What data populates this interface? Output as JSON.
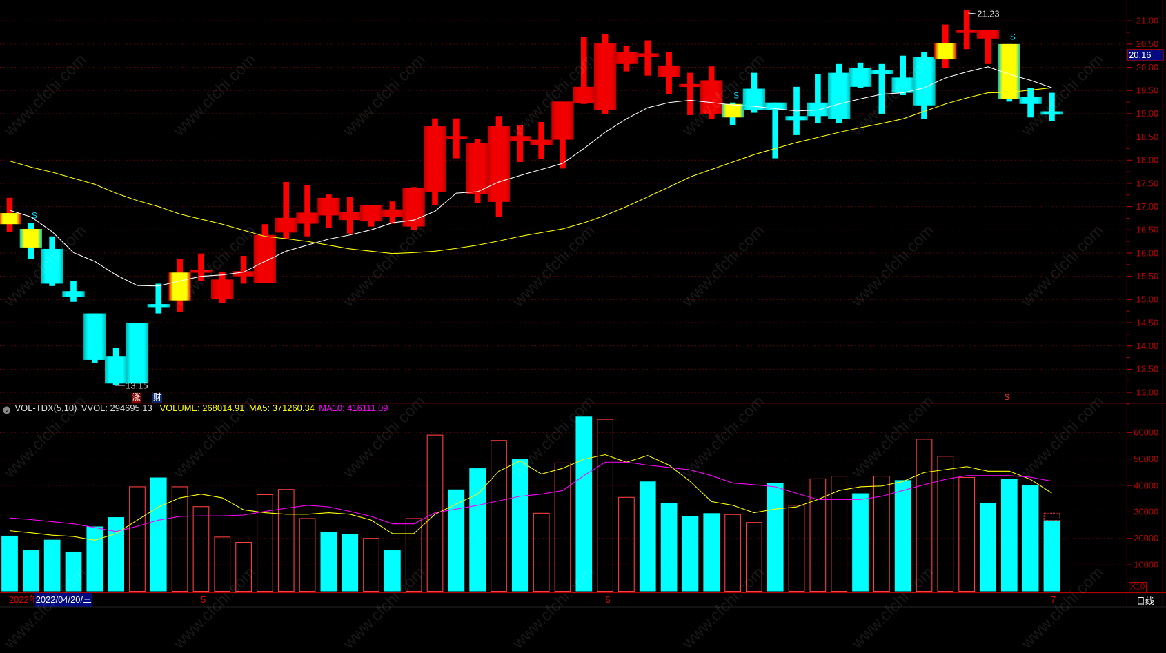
{
  "watermark": "www.cfchi.com",
  "colors": {
    "up": "#ff0000",
    "down": "#00ffff",
    "highlight": "#ffff00",
    "grid": "#8b0000",
    "axis": "#c00000",
    "ma_short": "#ffffff",
    "ma_long": "#ffff00",
    "vol_ma5": "#ffff00",
    "vol_ma10": "#ff00ff",
    "price_tag_bg": "#000a80"
  },
  "price_axis": {
    "ticks": [
      "21.00",
      "20.50",
      "20.00",
      "19.50",
      "19.00",
      "18.50",
      "18.00",
      "17.50",
      "17.00",
      "16.50",
      "16.00",
      "15.50",
      "15.00",
      "14.50",
      "14.00",
      "13.50",
      "13.00"
    ],
    "current_price": "20.16"
  },
  "annotations": {
    "low_label": "13.15",
    "high_label": "21.23",
    "signal_label": "S",
    "badge_rise": "涨",
    "badge_finance": "财",
    "dollar_marker": "$"
  },
  "volume_header": {
    "indicator": "VOL-TDX(5,10)",
    "vvol": "VVOL: 294695.13",
    "volume": "VOLUME: 268014.91",
    "ma5": "MA5: 371260.34",
    "ma10": "MA10: 416111.09"
  },
  "volume_axis": {
    "ticks": [
      "60000",
      "50000",
      "40000",
      "30000",
      "20000",
      "10000"
    ],
    "multiplier": "X10"
  },
  "date_bar": {
    "year": "2022年",
    "selected_date": "2022/04/20/三",
    "months": [
      "5",
      "6",
      "7"
    ],
    "period": "日线"
  },
  "chart_data": {
    "type": "candlestick",
    "candles": [
      {
        "o": 16.86,
        "h": 17.19,
        "l": 16.46,
        "c": 16.62,
        "style": "yellow-up-edge"
      },
      {
        "o": 16.52,
        "h": 16.65,
        "l": 15.88,
        "c": 16.12,
        "style": "yellow-down-edge",
        "signal": true
      },
      {
        "o": 16.09,
        "h": 16.36,
        "l": 15.29,
        "c": 15.34
      },
      {
        "o": 15.18,
        "h": 15.4,
        "l": 14.95,
        "c": 15.05
      },
      {
        "o": 14.7,
        "h": 14.7,
        "l": 13.64,
        "c": 13.7
      },
      {
        "o": 13.77,
        "h": 13.96,
        "l": 13.15,
        "c": 13.19,
        "low_mark": true
      },
      {
        "o": 14.5,
        "h": 14.5,
        "l": 13.19,
        "c": 13.19
      },
      {
        "o": 14.9,
        "h": 15.34,
        "l": 14.7,
        "c": 14.86
      },
      {
        "o": 14.98,
        "h": 15.88,
        "l": 14.73,
        "c": 15.58,
        "style": "yellow-up-edge"
      },
      {
        "o": 15.58,
        "h": 15.99,
        "l": 15.4,
        "c": 15.64
      },
      {
        "o": 15.02,
        "h": 15.59,
        "l": 14.92,
        "c": 15.43
      },
      {
        "o": 15.5,
        "h": 15.94,
        "l": 15.34,
        "c": 15.61
      },
      {
        "o": 15.35,
        "h": 16.62,
        "l": 15.35,
        "c": 16.39
      },
      {
        "o": 16.44,
        "h": 17.53,
        "l": 16.3,
        "c": 16.76
      },
      {
        "o": 16.63,
        "h": 17.46,
        "l": 16.36,
        "c": 16.87
      },
      {
        "o": 16.81,
        "h": 17.26,
        "l": 16.54,
        "c": 17.19
      },
      {
        "o": 16.71,
        "h": 17.21,
        "l": 16.42,
        "c": 16.89
      },
      {
        "o": 16.68,
        "h": 17.03,
        "l": 16.57,
        "c": 17.03
      },
      {
        "o": 16.78,
        "h": 17.11,
        "l": 16.63,
        "c": 16.94
      },
      {
        "o": 16.57,
        "h": 17.42,
        "l": 16.49,
        "c": 17.4
      },
      {
        "o": 17.32,
        "h": 18.9,
        "l": 17.03,
        "c": 18.73
      },
      {
        "o": 18.47,
        "h": 18.9,
        "l": 18.04,
        "c": 18.52
      },
      {
        "o": 17.27,
        "h": 18.46,
        "l": 17.08,
        "c": 18.36
      },
      {
        "o": 17.1,
        "h": 18.95,
        "l": 16.78,
        "c": 18.73
      },
      {
        "o": 18.41,
        "h": 18.76,
        "l": 17.96,
        "c": 18.52
      },
      {
        "o": 18.33,
        "h": 18.82,
        "l": 18.02,
        "c": 18.44
      },
      {
        "o": 18.44,
        "h": 19.26,
        "l": 17.82,
        "c": 19.26
      },
      {
        "o": 19.22,
        "h": 20.66,
        "l": 19.21,
        "c": 19.58
      },
      {
        "o": 19.08,
        "h": 20.71,
        "l": 19.0,
        "c": 20.52
      },
      {
        "o": 20.07,
        "h": 20.47,
        "l": 19.91,
        "c": 20.33
      },
      {
        "o": 20.23,
        "h": 20.58,
        "l": 19.82,
        "c": 20.3
      },
      {
        "o": 19.8,
        "h": 20.33,
        "l": 19.43,
        "c": 20.04
      },
      {
        "o": 19.58,
        "h": 19.88,
        "l": 18.97,
        "c": 19.64
      },
      {
        "o": 19.0,
        "h": 20.02,
        "l": 18.89,
        "c": 19.72
      },
      {
        "o": 19.21,
        "h": 19.24,
        "l": 18.76,
        "c": 18.92,
        "style": "yellow-down-edge",
        "signal": true
      },
      {
        "o": 19.54,
        "h": 19.88,
        "l": 19.02,
        "c": 19.08
      },
      {
        "o": 19.24,
        "h": 19.24,
        "l": 18.04,
        "c": 19.08
      },
      {
        "o": 18.95,
        "h": 19.58,
        "l": 18.54,
        "c": 18.86
      },
      {
        "o": 19.24,
        "h": 19.85,
        "l": 18.79,
        "c": 18.95
      },
      {
        "o": 19.88,
        "h": 20.07,
        "l": 18.79,
        "c": 18.89
      },
      {
        "o": 19.98,
        "h": 20.1,
        "l": 19.56,
        "c": 19.58
      },
      {
        "o": 19.94,
        "h": 20.07,
        "l": 19.0,
        "c": 19.85
      },
      {
        "o": 19.78,
        "h": 20.25,
        "l": 19.4,
        "c": 19.45
      },
      {
        "o": 20.23,
        "h": 20.33,
        "l": 18.89,
        "c": 19.18
      },
      {
        "o": 20.17,
        "h": 20.92,
        "l": 19.99,
        "c": 20.52,
        "style": "yellow-up-edge"
      },
      {
        "o": 20.74,
        "h": 21.23,
        "l": 20.39,
        "c": 20.81,
        "high_mark": true
      },
      {
        "o": 20.62,
        "h": 20.81,
        "l": 20.07,
        "c": 20.81
      },
      {
        "o": 20.5,
        "h": 20.5,
        "l": 19.26,
        "c": 19.32,
        "style": "yellow-down-edge",
        "signal": true
      },
      {
        "o": 19.37,
        "h": 19.56,
        "l": 18.92,
        "c": 19.21
      },
      {
        "o": 19.05,
        "h": 19.45,
        "l": 18.84,
        "c": 18.98
      }
    ],
    "ma_short": [
      16.92,
      16.78,
      16.46,
      16.01,
      15.82,
      15.53,
      15.3,
      15.29,
      15.4,
      15.5,
      15.53,
      15.59,
      15.82,
      16.04,
      16.17,
      16.3,
      16.39,
      16.5,
      16.65,
      16.71,
      16.9,
      17.29,
      17.32,
      17.53,
      17.67,
      17.8,
      17.93,
      18.25,
      18.6,
      18.89,
      19.13,
      19.24,
      19.29,
      19.24,
      19.19,
      19.16,
      19.11,
      19.06,
      19.08,
      19.21,
      19.32,
      19.42,
      19.45,
      19.56,
      19.77,
      19.9,
      20.01,
      19.85,
      19.72,
      19.56
    ],
    "ma_long": [
      17.98,
      17.85,
      17.74,
      17.61,
      17.48,
      17.29,
      17.13,
      17.0,
      16.84,
      16.73,
      16.62,
      16.49,
      16.36,
      16.31,
      16.25,
      16.17,
      16.09,
      16.04,
      15.99,
      16.01,
      16.04,
      16.1,
      16.17,
      16.26,
      16.36,
      16.44,
      16.52,
      16.65,
      16.81,
      17.0,
      17.21,
      17.42,
      17.64,
      17.8,
      17.96,
      18.12,
      18.25,
      18.38,
      18.49,
      18.6,
      18.7,
      18.79,
      18.89,
      19.05,
      19.21,
      19.34,
      19.45,
      19.46,
      19.51,
      19.56
    ],
    "price_range": [
      13.0,
      21.0
    ],
    "volume": [
      21000,
      15500,
      19500,
      15000,
      24500,
      28000,
      39500,
      43000,
      39500,
      32000,
      20500,
      18500,
      36500,
      38500,
      27500,
      22500,
      21500,
      20000,
      15500,
      27500,
      59000,
      38500,
      46500,
      57000,
      50000,
      29500,
      48500,
      66000,
      65000,
      35500,
      41500,
      33500,
      28500,
      29500,
      29000,
      26000,
      41000,
      32500,
      42500,
      43500,
      37000,
      43500,
      42000,
      57500,
      51000,
      43000,
      33500,
      42500,
      40000,
      26801
    ],
    "volume_up": [
      0,
      0,
      0,
      0,
      0,
      0,
      1,
      0,
      1,
      1,
      1,
      1,
      1,
      1,
      1,
      0,
      0,
      1,
      0,
      1,
      1,
      0,
      0,
      1,
      0,
      1,
      1,
      0,
      1,
      1,
      0,
      0,
      0,
      0,
      1,
      1,
      0,
      1,
      1,
      1,
      0,
      1,
      0,
      1,
      1,
      1,
      0,
      0,
      0,
      0
    ],
    "vol_ma5": [
      22900,
      22100,
      21200,
      20700,
      19300,
      21800,
      26900,
      31900,
      35300,
      36700,
      35300,
      30800,
      29700,
      29100,
      29100,
      29700,
      29100,
      26900,
      21800,
      21800,
      29100,
      33000,
      36700,
      45400,
      49300,
      44300,
      46500,
      49900,
      51600,
      48800,
      51300,
      47700,
      41500,
      33900,
      32500,
      29700,
      31100,
      31900,
      34700,
      38100,
      39500,
      39800,
      41500,
      44900,
      46000,
      47100,
      45400,
      45400,
      42300,
      37126
    ],
    "vol_ma10": [
      27700,
      27100,
      26300,
      25500,
      24100,
      22600,
      24600,
      26900,
      28300,
      28500,
      28500,
      28800,
      30200,
      31400,
      32500,
      31900,
      30200,
      28300,
      25500,
      25500,
      29700,
      31100,
      32500,
      34200,
      35900,
      36700,
      38100,
      43700,
      48800,
      48800,
      47700,
      46800,
      45900,
      43700,
      40900,
      40300,
      39500,
      37000,
      34700,
      34700,
      34700,
      35900,
      38100,
      40300,
      42300,
      43700,
      43700,
      43700,
      43100,
      41611
    ],
    "volume_range": [
      0,
      70000
    ]
  }
}
